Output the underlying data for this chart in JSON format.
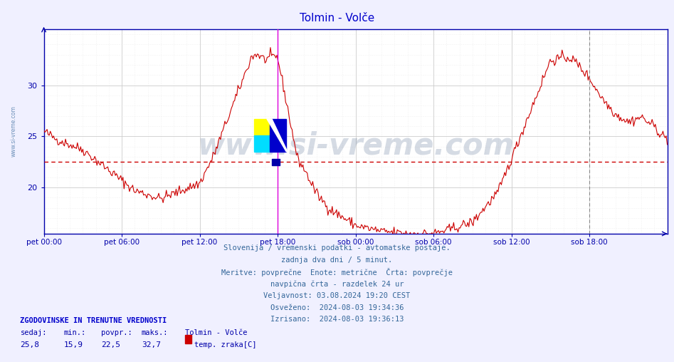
{
  "title": "Tolmin - Volče",
  "title_color": "#0000cc",
  "bg_color": "#f0f0ff",
  "plot_bg_color": "#ffffff",
  "line_color": "#cc0000",
  "avg_line_color": "#cc0000",
  "avg_value": 22.5,
  "y_min": 15.5,
  "y_max": 35.5,
  "y_ticks": [
    20,
    25,
    30
  ],
  "x_labels": [
    "pet 00:00",
    "pet 06:00",
    "pet 12:00",
    "pet 18:00",
    "sob 00:00",
    "sob 06:00",
    "sob 12:00",
    "sob 18:00"
  ],
  "vline_color": "#dd00dd",
  "grid_color": "#cccccc",
  "grid_minor_color": "#e8e8e8",
  "axis_color": "#0000aa",
  "text_color": "#336699",
  "watermark_text": "www.si-vreme.com",
  "watermark_color": "#1a3a6a",
  "watermark_alpha": 0.18,
  "info_lines": [
    "Slovenija / vremenski podatki - avtomatske postaje.",
    "zadnja dva dni / 5 minut.",
    "Meritve: povprečne  Enote: metrične  Črta: povprečje",
    "navpična črta - razdelek 24 ur",
    "Veljavnost: 03.08.2024 19:20 CEST",
    "Osveženo:  2024-08-03 19:34:36",
    "Izrisano:  2024-08-03 19:36:13"
  ],
  "legend_title": "ZGODOVINSKE IN TRENUTNE VREDNOSTI",
  "legend_headers": [
    "sedaj:",
    "min.:",
    "povpr.:",
    "maks.:"
  ],
  "legend_values": [
    "25,8",
    "15,9",
    "22,5",
    "32,7"
  ],
  "legend_station": "Tolmin - Volče",
  "legend_series": "temp. zraka[C]",
  "legend_color": "#cc0000"
}
